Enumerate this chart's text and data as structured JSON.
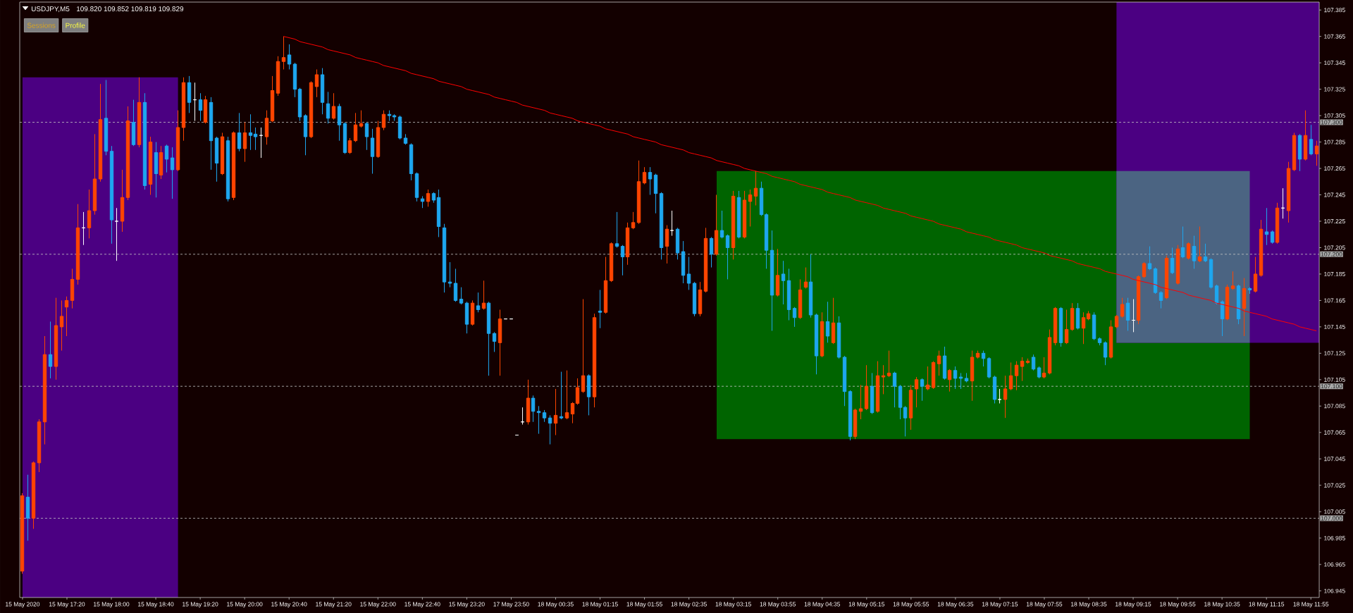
{
  "chart_data": {
    "type": "candlestick",
    "title": "USDJPY,M5",
    "subtitle": "109.820 109.852 109.819 109.829",
    "annotations": [
      "Sessions",
      "Profile"
    ],
    "categories": [
      "15 May 2020",
      null,
      null,
      null,
      null,
      null,
      null,
      null,
      "15 May 17:20",
      null,
      null,
      null,
      null,
      null,
      null,
      null,
      "15 May 18:00",
      null,
      null,
      null,
      null,
      null,
      null,
      null,
      "15 May 18:40",
      null,
      null,
      null,
      null,
      null,
      null,
      null,
      "15 May 19:20",
      null,
      null,
      null,
      null,
      null,
      null,
      null,
      "15 May 20:00",
      null,
      null,
      null,
      null,
      null,
      null,
      null,
      "15 May 20:40",
      null,
      null,
      null,
      null,
      null,
      null,
      null,
      "15 May 21:20",
      null,
      null,
      null,
      null,
      null,
      null,
      null,
      "15 May 22:00",
      null,
      null,
      null,
      null,
      null,
      null,
      null,
      "15 May 22:40",
      null,
      null,
      null,
      null,
      null,
      null,
      null,
      "15 May 23:20",
      null,
      null,
      null,
      null,
      null,
      null,
      null,
      "17 May 23:50",
      null,
      null,
      null,
      null,
      null,
      null,
      null,
      "18 May 00:35",
      null,
      null,
      null,
      null,
      null,
      null,
      null,
      "18 May 01:15",
      null,
      null,
      null,
      null,
      null,
      null,
      null,
      "18 May 01:55",
      null,
      null,
      null,
      null,
      null,
      null,
      null,
      "18 May 02:35",
      null,
      null,
      null,
      null,
      null,
      null,
      null,
      "18 May 03:15",
      null,
      null,
      null,
      null,
      null,
      null,
      null,
      "18 May 03:55",
      null,
      null,
      null,
      null,
      null,
      null,
      null,
      "18 May 04:35",
      null,
      null,
      null,
      null,
      null,
      null,
      null,
      "18 May 05:15",
      null,
      null,
      null,
      null,
      null,
      null,
      null,
      "18 May 05:55",
      null,
      null,
      null,
      null,
      null,
      null,
      null,
      "18 May 06:35",
      null,
      null,
      null,
      null,
      null,
      null,
      null,
      "18 May 07:15",
      null,
      null,
      null,
      null,
      null,
      null,
      null,
      "18 May 07:55",
      null,
      null,
      null,
      null,
      null,
      null,
      null,
      "18 May 08:35",
      null,
      null,
      null,
      null,
      null,
      null,
      null,
      "18 May 09:15",
      null,
      null,
      null,
      null,
      null,
      null,
      null,
      "18 May 09:55",
      null,
      null,
      null,
      null,
      null,
      null,
      null,
      "18 May 10:35",
      null,
      null,
      null,
      null,
      null,
      null,
      null,
      "18 May 11:15",
      null,
      null,
      null,
      null,
      null,
      null,
      null,
      "18 May 11:55",
      null
    ],
    "ohlc": [
      [
        106.96,
        107.019,
        106.958,
        107.017
      ],
      [
        107.016,
        107.033,
        106.983,
        107.0
      ],
      [
        107.0,
        107.043,
        106.992,
        107.042
      ],
      [
        107.042,
        107.075,
        107.035,
        107.073
      ],
      [
        107.073,
        107.138,
        107.056,
        107.124
      ],
      [
        107.124,
        107.149,
        107.106,
        107.115
      ],
      [
        107.115,
        107.167,
        107.105,
        107.146
      ],
      [
        107.145,
        107.165,
        107.127,
        107.153
      ],
      [
        107.16,
        107.168,
        107.138,
        107.165
      ],
      [
        107.165,
        107.189,
        107.159,
        107.181
      ],
      [
        107.181,
        107.238,
        107.177,
        107.22
      ],
      [
        107.22,
        107.232,
        107.207,
        107.22
      ],
      [
        107.22,
        107.249,
        107.212,
        107.233
      ],
      [
        107.233,
        107.291,
        107.23,
        107.257
      ],
      [
        107.257,
        107.329,
        107.255,
        107.302
      ],
      [
        107.303,
        107.332,
        107.275,
        107.278
      ],
      [
        107.278,
        107.282,
        107.208,
        107.226
      ],
      [
        107.225,
        107.235,
        107.195,
        107.225
      ],
      [
        107.225,
        107.264,
        107.217,
        107.243
      ],
      [
        107.243,
        107.312,
        107.241,
        107.301
      ],
      [
        107.3,
        107.317,
        107.282,
        107.283
      ],
      [
        107.283,
        107.334,
        107.281,
        107.315
      ],
      [
        107.315,
        107.322,
        107.249,
        107.252
      ],
      [
        107.253,
        107.289,
        107.245,
        107.285
      ],
      [
        107.277,
        107.285,
        107.243,
        107.261
      ],
      [
        107.26,
        107.282,
        107.257,
        107.277
      ],
      [
        107.282,
        107.283,
        107.262,
        107.272
      ],
      [
        107.273,
        107.281,
        107.242,
        107.264
      ],
      [
        107.264,
        107.309,
        107.263,
        107.296
      ],
      [
        107.296,
        107.334,
        107.286,
        107.33
      ],
      [
        107.33,
        107.335,
        107.307,
        107.315
      ],
      [
        107.317,
        107.33,
        107.301,
        107.317
      ],
      [
        107.317,
        107.322,
        107.301,
        107.309
      ],
      [
        107.3,
        107.32,
        107.299,
        107.317
      ],
      [
        107.315,
        107.319,
        107.264,
        107.286
      ],
      [
        107.288,
        107.289,
        107.255,
        107.269
      ],
      [
        107.261,
        107.292,
        107.26,
        107.289
      ],
      [
        107.286,
        107.289,
        107.24,
        107.242
      ],
      [
        107.243,
        107.293,
        107.241,
        107.292
      ],
      [
        107.292,
        107.307,
        107.278,
        107.28
      ],
      [
        107.28,
        107.3,
        107.27,
        107.292
      ],
      [
        107.292,
        107.306,
        107.279,
        107.29
      ],
      [
        107.291,
        107.296,
        107.279,
        107.289
      ],
      [
        107.29,
        107.296,
        107.273,
        107.29
      ],
      [
        107.289,
        107.309,
        107.283,
        107.303
      ],
      [
        107.301,
        107.335,
        107.3,
        107.324
      ],
      [
        107.322,
        107.35,
        107.32,
        107.346
      ],
      [
        107.346,
        107.365,
        107.34,
        107.349
      ],
      [
        107.351,
        107.359,
        107.34,
        107.344
      ],
      [
        107.344,
        107.345,
        107.319,
        107.325
      ],
      [
        107.325,
        107.326,
        107.301,
        107.304
      ],
      [
        107.305,
        107.306,
        107.275,
        107.289
      ],
      [
        107.289,
        107.331,
        107.288,
        107.33
      ],
      [
        107.327,
        107.34,
        107.319,
        107.336
      ],
      [
        107.336,
        107.341,
        107.306,
        107.315
      ],
      [
        107.314,
        107.323,
        107.299,
        107.303
      ],
      [
        107.303,
        107.322,
        107.302,
        107.312
      ],
      [
        107.312,
        107.314,
        107.286,
        107.298
      ],
      [
        107.299,
        107.3,
        107.276,
        107.277
      ],
      [
        107.277,
        107.288,
        107.276,
        107.286
      ],
      [
        107.286,
        107.307,
        107.285,
        107.298
      ],
      [
        107.297,
        107.309,
        107.296,
        107.299
      ],
      [
        107.299,
        107.3,
        107.279,
        107.289
      ],
      [
        107.288,
        107.295,
        107.261,
        107.274
      ],
      [
        107.274,
        107.301,
        107.273,
        107.296
      ],
      [
        107.296,
        107.309,
        107.294,
        107.306
      ],
      [
        107.306,
        107.309,
        107.301,
        107.305
      ],
      [
        107.305,
        107.306,
        107.301,
        107.304
      ],
      [
        107.304,
        107.305,
        107.287,
        107.288
      ],
      [
        107.288,
        107.291,
        107.283,
        107.284
      ],
      [
        107.283,
        107.284,
        107.256,
        107.261
      ],
      [
        107.261,
        107.262,
        107.24,
        107.243
      ],
      [
        107.242,
        107.244,
        107.235,
        107.24
      ],
      [
        107.24,
        107.249,
        107.236,
        107.246
      ],
      [
        107.246,
        107.247,
        107.239,
        107.241
      ],
      [
        107.243,
        107.249,
        107.213,
        107.221
      ],
      [
        107.22,
        107.223,
        107.171,
        107.179
      ],
      [
        107.179,
        107.194,
        107.175,
        107.178
      ],
      [
        107.178,
        107.189,
        107.164,
        107.165
      ],
      [
        107.166,
        107.175,
        107.162,
        107.163
      ],
      [
        107.163,
        107.164,
        107.14,
        107.147
      ],
      [
        107.147,
        107.165,
        107.146,
        107.163
      ],
      [
        107.161,
        107.171,
        107.156,
        107.158
      ],
      [
        107.159,
        107.18,
        107.158,
        107.163
      ],
      [
        107.163,
        107.164,
        107.108,
        107.14
      ],
      [
        107.14,
        107.141,
        107.126,
        107.134
      ],
      [
        107.133,
        107.158,
        107.108,
        107.151
      ],
      [
        107.151,
        107.151,
        107.151,
        107.151
      ],
      [
        107.151,
        107.151,
        107.151,
        107.151
      ],
      [
        107.063,
        107.063,
        107.063,
        107.063
      ],
      [
        107.073,
        107.084,
        107.071,
        107.073
      ],
      [
        107.073,
        107.105,
        107.071,
        107.091
      ],
      [
        107.091,
        107.093,
        107.073,
        107.081
      ],
      [
        107.081,
        107.085,
        107.064,
        107.08
      ],
      [
        107.08,
        107.082,
        107.073,
        107.076
      ],
      [
        107.076,
        107.078,
        107.056,
        107.072
      ],
      [
        107.072,
        107.098,
        107.063,
        107.078
      ],
      [
        107.077,
        107.111,
        107.075,
        107.076
      ],
      [
        107.076,
        107.112,
        107.075,
        107.08
      ],
      [
        107.079,
        107.088,
        107.072,
        107.087
      ],
      [
        107.087,
        107.106,
        107.086,
        107.099
      ],
      [
        107.096,
        107.166,
        107.095,
        107.108
      ],
      [
        107.108,
        107.109,
        107.078,
        107.092
      ],
      [
        107.092,
        107.155,
        107.084,
        107.152
      ],
      [
        107.157,
        107.173,
        107.144,
        107.156
      ],
      [
        107.156,
        107.198,
        107.155,
        107.18
      ],
      [
        107.18,
        107.209,
        107.179,
        107.208
      ],
      [
        107.208,
        107.232,
        107.205,
        107.206
      ],
      [
        107.206,
        107.207,
        107.184,
        107.198
      ],
      [
        107.198,
        107.224,
        107.192,
        107.22
      ],
      [
        107.22,
        107.232,
        107.219,
        107.224
      ],
      [
        107.224,
        107.271,
        107.223,
        107.255
      ],
      [
        107.254,
        107.266,
        107.253,
        107.262
      ],
      [
        107.262,
        107.266,
        107.245,
        107.257
      ],
      [
        107.26,
        107.261,
        107.231,
        107.246
      ],
      [
        107.246,
        107.247,
        107.196,
        107.205
      ],
      [
        107.206,
        107.222,
        107.193,
        107.219
      ],
      [
        107.218,
        107.233,
        107.214,
        107.218
      ],
      [
        107.219,
        107.22,
        107.196,
        107.201
      ],
      [
        107.202,
        107.21,
        107.178,
        107.184
      ],
      [
        107.185,
        107.198,
        107.173,
        107.178
      ],
      [
        107.178,
        107.179,
        107.153,
        107.155
      ],
      [
        107.155,
        107.179,
        107.153,
        107.173
      ],
      [
        107.172,
        107.22,
        107.171,
        107.212
      ],
      [
        107.212,
        107.213,
        107.19,
        107.2
      ],
      [
        107.2,
        107.245,
        107.199,
        107.218
      ],
      [
        107.218,
        107.233,
        107.212,
        107.213
      ],
      [
        107.214,
        107.215,
        107.181,
        107.205
      ],
      [
        107.205,
        107.248,
        107.196,
        107.244
      ],
      [
        107.243,
        107.248,
        107.212,
        107.213
      ],
      [
        107.213,
        107.248,
        107.212,
        107.241
      ],
      [
        107.24,
        107.249,
        107.221,
        107.245
      ],
      [
        107.244,
        107.263,
        107.237,
        107.25
      ],
      [
        107.25,
        107.255,
        107.229,
        107.23
      ],
      [
        107.23,
        107.231,
        107.189,
        107.203
      ],
      [
        107.203,
        107.218,
        107.142,
        107.169
      ],
      [
        107.169,
        107.204,
        107.168,
        107.184
      ],
      [
        107.185,
        107.195,
        107.162,
        107.18
      ],
      [
        107.18,
        107.189,
        107.15,
        107.158
      ],
      [
        107.159,
        107.16,
        107.145,
        107.152
      ],
      [
        107.152,
        107.181,
        107.151,
        107.173
      ],
      [
        107.175,
        107.19,
        107.174,
        107.179
      ],
      [
        107.179,
        107.2,
        107.152,
        107.154
      ],
      [
        107.154,
        107.155,
        107.109,
        107.123
      ],
      [
        107.123,
        107.156,
        107.122,
        107.149
      ],
      [
        107.149,
        107.164,
        107.133,
        107.138
      ],
      [
        107.133,
        107.167,
        107.132,
        107.148
      ],
      [
        107.148,
        107.153,
        107.121,
        107.122
      ],
      [
        107.122,
        107.123,
        107.085,
        107.096
      ],
      [
        107.096,
        107.097,
        107.059,
        107.062
      ],
      [
        107.062,
        107.083,
        107.06,
        107.082
      ],
      [
        107.081,
        107.101,
        107.075,
        107.083
      ],
      [
        107.083,
        107.116,
        107.082,
        107.1
      ],
      [
        107.1,
        107.11,
        107.079,
        107.08
      ],
      [
        107.081,
        107.119,
        107.08,
        107.108
      ],
      [
        107.107,
        107.116,
        107.094,
        107.108
      ],
      [
        107.108,
        107.127,
        107.107,
        107.11
      ],
      [
        107.11,
        107.111,
        107.084,
        107.1
      ],
      [
        107.1,
        107.101,
        107.075,
        107.084
      ],
      [
        107.084,
        107.085,
        107.062,
        107.076
      ],
      [
        107.076,
        107.101,
        107.067,
        107.097
      ],
      [
        107.098,
        107.107,
        107.084,
        107.105
      ],
      [
        107.105,
        107.106,
        107.089,
        107.1
      ],
      [
        107.098,
        107.115,
        107.097,
        107.101
      ],
      [
        107.099,
        107.119,
        107.098,
        107.118
      ],
      [
        107.117,
        107.127,
        107.108,
        107.123
      ],
      [
        107.123,
        107.13,
        107.105,
        107.106
      ],
      [
        107.105,
        107.113,
        107.096,
        107.112
      ],
      [
        107.112,
        107.115,
        107.098,
        107.106
      ],
      [
        107.107,
        107.11,
        107.098,
        107.106
      ],
      [
        107.106,
        107.11,
        107.103,
        107.104
      ],
      [
        107.104,
        107.127,
        107.089,
        107.122
      ],
      [
        107.122,
        107.127,
        107.121,
        107.125
      ],
      [
        107.125,
        107.127,
        107.115,
        107.121
      ],
      [
        107.121,
        107.122,
        107.106,
        107.107
      ],
      [
        107.107,
        107.108,
        107.087,
        107.09
      ],
      [
        107.09,
        107.098,
        107.087,
        107.09
      ],
      [
        107.09,
        107.108,
        107.076,
        107.098
      ],
      [
        107.098,
        107.118,
        107.097,
        107.108
      ],
      [
        107.108,
        107.119,
        107.097,
        107.116
      ],
      [
        107.115,
        107.122,
        107.104,
        107.119
      ],
      [
        107.118,
        107.121,
        107.117,
        107.119
      ],
      [
        107.122,
        107.124,
        107.112,
        107.113
      ],
      [
        107.114,
        107.115,
        107.106,
        107.107
      ],
      [
        107.107,
        107.122,
        107.106,
        107.11
      ],
      [
        107.11,
        107.143,
        107.109,
        107.137
      ],
      [
        107.133,
        107.16,
        107.131,
        107.159
      ],
      [
        107.159,
        107.16,
        107.13,
        107.133
      ],
      [
        107.133,
        107.158,
        107.132,
        107.143
      ],
      [
        107.143,
        107.163,
        107.142,
        107.159
      ],
      [
        107.159,
        107.163,
        107.143,
        107.144
      ],
      [
        107.144,
        107.156,
        107.132,
        107.152
      ],
      [
        107.151,
        107.157,
        107.15,
        107.155
      ],
      [
        107.154,
        107.156,
        107.135,
        107.136
      ],
      [
        107.136,
        107.137,
        107.131,
        107.133
      ],
      [
        107.133,
        107.134,
        107.116,
        107.122
      ],
      [
        107.122,
        107.15,
        107.121,
        107.145
      ],
      [
        107.145,
        107.154,
        107.144,
        107.153
      ],
      [
        107.153,
        107.167,
        107.152,
        107.162
      ],
      [
        107.163,
        107.167,
        107.142,
        107.15
      ],
      [
        107.15,
        107.166,
        107.141,
        107.15
      ],
      [
        107.15,
        107.184,
        107.147,
        107.183
      ],
      [
        107.183,
        107.194,
        107.182,
        107.193
      ],
      [
        107.193,
        107.206,
        107.188,
        107.189
      ],
      [
        107.189,
        107.19,
        107.17,
        107.171
      ],
      [
        107.171,
        107.172,
        107.159,
        107.165
      ],
      [
        107.167,
        107.199,
        107.166,
        107.197
      ],
      [
        107.197,
        107.205,
        107.185,
        107.186
      ],
      [
        107.178,
        107.207,
        107.177,
        107.204
      ],
      [
        107.205,
        107.221,
        107.197,
        107.198
      ],
      [
        107.197,
        107.209,
        107.196,
        107.208
      ],
      [
        107.206,
        107.214,
        107.189,
        107.195
      ],
      [
        107.195,
        107.221,
        107.194,
        107.198
      ],
      [
        107.198,
        107.208,
        107.194,
        107.195
      ],
      [
        107.196,
        107.197,
        107.174,
        107.175
      ],
      [
        107.176,
        107.177,
        107.162,
        107.163
      ],
      [
        107.164,
        107.165,
        107.138,
        107.151
      ],
      [
        107.151,
        107.177,
        107.15,
        107.175
      ],
      [
        107.174,
        107.187,
        107.173,
        107.176
      ],
      [
        107.176,
        107.177,
        107.147,
        107.151
      ],
      [
        107.159,
        107.182,
        107.138,
        107.174
      ],
      [
        107.174,
        107.175,
        107.17,
        107.173
      ],
      [
        107.172,
        107.198,
        107.171,
        107.185
      ],
      [
        107.184,
        107.226,
        107.183,
        107.219
      ],
      [
        107.217,
        107.235,
        107.207,
        107.215
      ],
      [
        107.217,
        107.218,
        107.208,
        107.209
      ],
      [
        107.209,
        107.239,
        107.208,
        107.235
      ],
      [
        107.235,
        107.25,
        107.227,
        107.235
      ],
      [
        107.233,
        107.27,
        107.224,
        107.265
      ],
      [
        107.264,
        107.292,
        107.263,
        107.29
      ],
      [
        107.29,
        107.291,
        107.263,
        107.272
      ],
      [
        107.272,
        107.309,
        107.271,
        107.29
      ],
      [
        107.287,
        107.298,
        107.275,
        107.276
      ],
      [
        107.276,
        107.286,
        107.267,
        107.282
      ]
    ],
    "colors": [
      "#ff4500",
      "#1ea7ef",
      "#ff4500",
      "#ff4500",
      "#ff4500",
      "#1ea7ef",
      "#ff4500",
      "#ff4500",
      "#ff4500",
      "#ff4500",
      "#ff4500",
      "#ffffff",
      "#ff4500",
      "#ff4500",
      "#ff4500",
      "#1ea7ef",
      "#1ea7ef",
      "#ffffff",
      "#ff4500",
      "#ff4500",
      "#1ea7ef",
      "#ff4500",
      "#1ea7ef",
      "#ff4500",
      "#1ea7ef",
      "#ff4500",
      "#1ea7ef",
      "#1ea7ef",
      "#ff4500",
      "#ff4500",
      "#1ea7ef",
      "#ffffff",
      "#1ea7ef",
      "#ff4500",
      "#1ea7ef",
      "#1ea7ef",
      "#ff4500",
      "#1ea7ef",
      "#ff4500",
      "#1ea7ef",
      "#ff4500",
      "#1ea7ef",
      "#1ea7ef",
      "#ffffff",
      "#ff4500",
      "#ff4500",
      "#ff4500",
      "#ff4500",
      "#1ea7ef",
      "#1ea7ef",
      "#1ea7ef",
      "#1ea7ef",
      "#ff4500",
      "#ff4500",
      "#1ea7ef",
      "#1ea7ef",
      "#ff4500",
      "#1ea7ef",
      "#1ea7ef",
      "#ff4500",
      "#ff4500",
      "#ff4500",
      "#1ea7ef",
      "#1ea7ef",
      "#ff4500",
      "#ff4500",
      "#1ea7ef",
      "#1ea7ef",
      "#1ea7ef",
      "#1ea7ef",
      "#1ea7ef",
      "#1ea7ef",
      "#1ea7ef",
      "#ff4500",
      "#1ea7ef",
      "#1ea7ef",
      "#1ea7ef",
      "#1ea7ef",
      "#1ea7ef",
      "#1ea7ef",
      "#1ea7ef",
      "#ff4500",
      "#1ea7ef",
      "#ff4500",
      "#1ea7ef",
      "#1ea7ef",
      "#ff4500",
      "#ffffff",
      "#ffffff",
      "#ffffff",
      "#ffffff",
      "#ff4500",
      "#1ea7ef",
      "#1ea7ef",
      "#1ea7ef",
      "#1ea7ef",
      "#ff4500",
      "#1ea7ef",
      "#ff4500",
      "#ff4500",
      "#ff4500",
      "#ff4500",
      "#1ea7ef",
      "#ff4500",
      "#1ea7ef",
      "#ff4500",
      "#ff4500",
      "#1ea7ef",
      "#1ea7ef",
      "#ff4500",
      "#ff4500",
      "#ff4500",
      "#ff4500",
      "#1ea7ef",
      "#1ea7ef",
      "#1ea7ef",
      "#ff4500",
      "#ffffff",
      "#1ea7ef",
      "#1ea7ef",
      "#1ea7ef",
      "#1ea7ef",
      "#ff4500",
      "#ff4500",
      "#1ea7ef",
      "#ff4500",
      "#1ea7ef",
      "#1ea7ef",
      "#ff4500",
      "#1ea7ef",
      "#ff4500",
      "#ff4500",
      "#ff4500",
      "#1ea7ef",
      "#1ea7ef",
      "#1ea7ef",
      "#ff4500",
      "#1ea7ef",
      "#1ea7ef",
      "#1ea7ef",
      "#ff4500",
      "#ff4500",
      "#1ea7ef",
      "#1ea7ef",
      "#ff4500",
      "#1ea7ef",
      "#ff4500",
      "#1ea7ef",
      "#1ea7ef",
      "#1ea7ef",
      "#ff4500",
      "#ff4500",
      "#ff4500",
      "#1ea7ef",
      "#ff4500",
      "#ff4500",
      "#ff4500",
      "#1ea7ef",
      "#1ea7ef",
      "#1ea7ef",
      "#ff4500",
      "#ff4500",
      "#1ea7ef",
      "#ff4500",
      "#ff4500",
      "#ff4500",
      "#1ea7ef",
      "#ff4500",
      "#1ea7ef",
      "#1ea7ef",
      "#1ea7ef",
      "#ff4500",
      "#ff4500",
      "#1ea7ef",
      "#1ea7ef",
      "#1ea7ef",
      "#ffffff",
      "#ff4500",
      "#ff4500",
      "#ff4500",
      "#ff4500",
      "#ff4500",
      "#1ea7ef",
      "#1ea7ef",
      "#ff4500",
      "#ff4500",
      "#ff4500",
      "#1ea7ef",
      "#ff4500",
      "#ff4500",
      "#1ea7ef",
      "#ff4500",
      "#ff4500",
      "#1ea7ef",
      "#1ea7ef",
      "#1ea7ef",
      "#ff4500",
      "#ff4500",
      "#ff4500",
      "#1ea7ef",
      "#ffffff",
      "#ff4500",
      "#ff4500",
      "#1ea7ef",
      "#1ea7ef",
      "#1ea7ef",
      "#ff4500",
      "#1ea7ef",
      "#ff4500",
      "#1ea7ef",
      "#ff4500",
      "#1ea7ef",
      "#ff4500",
      "#1ea7ef",
      "#1ea7ef",
      "#1ea7ef",
      "#1ea7ef",
      "#ff4500",
      "#ff4500",
      "#1ea7ef",
      "#ff4500",
      "#1ea7ef",
      "#ff4500",
      "#ff4500",
      "#1ea7ef",
      "#1ea7ef",
      "#ff4500",
      "#ffffff",
      "#ff4500",
      "#ff4500",
      "#1ea7ef",
      "#ff4500",
      "#1ea7ef",
      "#ff4500"
    ],
    "series": [
      {
        "type": "line",
        "color": "#ff0000",
        "values": [
          null,
          null,
          null,
          null,
          null,
          null,
          null,
          null,
          null,
          null,
          null,
          null,
          null,
          null,
          null,
          null,
          null,
          null,
          null,
          null,
          null,
          null,
          null,
          null,
          null,
          null,
          null,
          null,
          null,
          null,
          null,
          null,
          null,
          null,
          null,
          null,
          null,
          null,
          null,
          null,
          null,
          null,
          null,
          null,
          null,
          null,
          null,
          107.365,
          107.364,
          107.363,
          107.361,
          107.36,
          107.359,
          107.358,
          107.357,
          107.355,
          107.354,
          107.353,
          107.352,
          107.351,
          107.349,
          107.348,
          107.347,
          107.346,
          107.345,
          107.343,
          107.342,
          107.341,
          107.34,
          107.339,
          107.337,
          107.336,
          107.335,
          107.334,
          107.333,
          107.331,
          107.33,
          107.329,
          107.328,
          107.327,
          107.325,
          107.324,
          107.323,
          107.322,
          107.321,
          107.319,
          107.318,
          107.317,
          107.316,
          107.315,
          107.313,
          107.312,
          107.311,
          107.31,
          107.309,
          107.307,
          107.306,
          107.305,
          107.304,
          107.303,
          107.301,
          107.3,
          107.299,
          107.298,
          107.297,
          107.295,
          107.294,
          107.293,
          107.292,
          107.291,
          107.289,
          107.288,
          107.287,
          107.286,
          107.285,
          107.283,
          107.282,
          107.281,
          107.28,
          107.279,
          107.277,
          107.276,
          107.275,
          107.274,
          107.273,
          107.271,
          107.27,
          107.269,
          107.268,
          107.267,
          107.265,
          107.264,
          107.263,
          107.262,
          107.261,
          107.259,
          107.258,
          107.257,
          107.256,
          107.255,
          107.253,
          107.252,
          107.251,
          107.25,
          107.249,
          107.247,
          107.246,
          107.245,
          107.244,
          107.243,
          107.241,
          107.24,
          107.239,
          107.238,
          107.237,
          107.235,
          107.234,
          107.233,
          107.232,
          107.231,
          107.229,
          107.228,
          107.227,
          107.226,
          107.225,
          107.223,
          107.222,
          107.221,
          107.22,
          107.219,
          107.217,
          107.216,
          107.215,
          107.214,
          107.213,
          107.211,
          107.21,
          107.209,
          107.208,
          107.207,
          107.205,
          107.204,
          107.203,
          107.202,
          107.201,
          107.199,
          107.198,
          107.197,
          107.196,
          107.195,
          107.193,
          107.192,
          107.191,
          107.19,
          107.189,
          107.187,
          107.186,
          107.185,
          107.184,
          107.183,
          107.181,
          107.18,
          107.179,
          107.178,
          107.177,
          107.175,
          107.174,
          107.173,
          107.172,
          107.171,
          107.169,
          107.168,
          107.167,
          107.166,
          107.165,
          107.163,
          107.162,
          107.161,
          107.16,
          107.159,
          107.157,
          107.156,
          107.155,
          107.154,
          107.153,
          107.151,
          107.15,
          107.149,
          107.148,
          107.147,
          107.145,
          107.144,
          107.143,
          107.142
        ]
      }
    ],
    "ylim": [
      106.94,
      107.391
    ],
    "yticks": [
      106.945,
      106.965,
      106.985,
      107.005,
      107.025,
      107.045,
      107.065,
      107.085,
      107.105,
      107.125,
      107.145,
      107.165,
      107.185,
      107.205,
      107.225,
      107.245,
      107.265,
      107.285,
      107.305,
      107.325,
      107.345,
      107.365,
      107.385
    ],
    "ref_lines": [
      {
        "axis": "y",
        "value": 107.3,
        "label": "107.300",
        "color": "#c8c8c8",
        "line_style": "dashed"
      },
      {
        "axis": "y",
        "value": 107.2,
        "label": "107.200",
        "color": "#c8c8c8",
        "line_style": "dashed"
      },
      {
        "axis": "y",
        "value": 107.1,
        "label": "107.100",
        "color": "#c8c8c8",
        "line_style": "dashed"
      },
      {
        "axis": "y",
        "value": 107.0,
        "label": "107.000",
        "color": "#c8c8c8",
        "line_style": "dashed"
      }
    ]
  }
}
